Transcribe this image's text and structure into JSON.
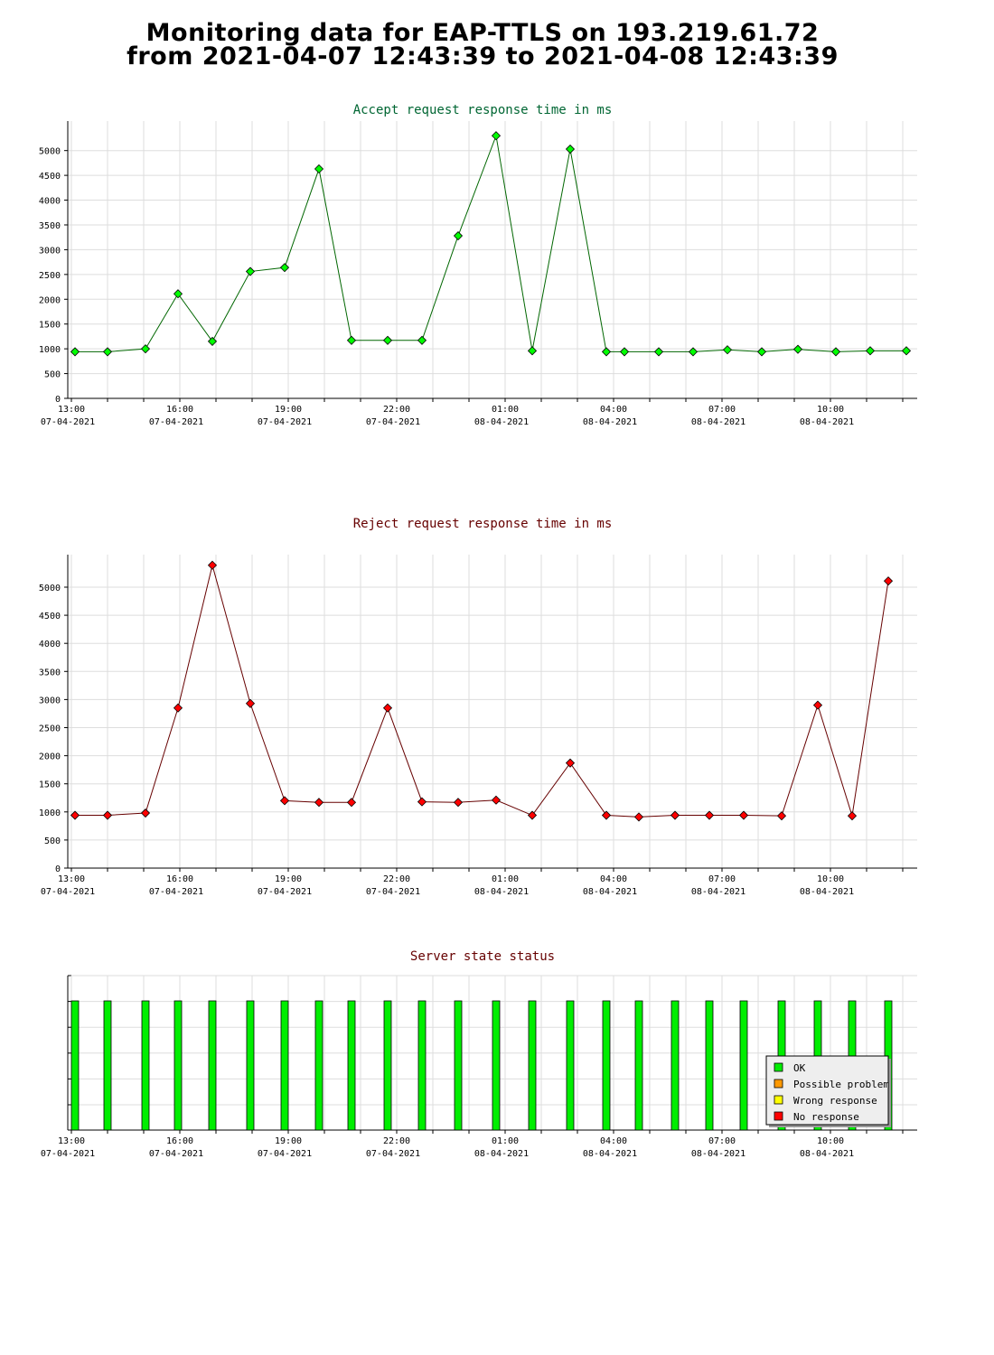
{
  "header": {
    "line1": "Monitoring data for EAP-TTLS on 193.219.61.72",
    "line2": "from 2021-04-07 12:43:39 to 2021-04-08 12:43:39"
  },
  "x_axis_ticks": [
    {
      "time": "13:00",
      "date": "07-04-2021",
      "h": 0
    },
    {
      "time": "16:00",
      "date": "07-04-2021",
      "h": 3
    },
    {
      "time": "19:00",
      "date": "07-04-2021",
      "h": 6
    },
    {
      "time": "22:00",
      "date": "07-04-2021",
      "h": 9
    },
    {
      "time": "01:00",
      "date": "08-04-2021",
      "h": 12
    },
    {
      "time": "04:00",
      "date": "08-04-2021",
      "h": 15
    },
    {
      "time": "07:00",
      "date": "08-04-2021",
      "h": 18
    },
    {
      "time": "10:00",
      "date": "08-04-2021",
      "h": 21
    }
  ],
  "colors": {
    "accept_line": "#006600",
    "accept_marker": "#00ff00",
    "reject_line": "#660000",
    "reject_marker": "#ff0000",
    "accept_title": "#006633",
    "reject_title": "#660000",
    "status_title": "#660000",
    "ok": "#00ee00",
    "possible_problem": "#ff9900",
    "wrong_response": "#ffff00",
    "no_response": "#ff0000"
  },
  "chart_data": [
    {
      "id": "accept",
      "type": "line",
      "title": "Accept request response time in ms",
      "ylim": [
        0,
        5450
      ],
      "yticks": [
        0,
        500,
        1000,
        1500,
        2000,
        2500,
        3000,
        3500,
        4000,
        4500,
        5000
      ],
      "x_hours_since_13": [
        0.1,
        1.0,
        2.05,
        2.95,
        3.9,
        4.95,
        5.9,
        6.85,
        7.75,
        8.75,
        9.7,
        10.7,
        11.75,
        12.75,
        13.8,
        14.8,
        15.3,
        16.25,
        17.2,
        18.15,
        19.1,
        20.1,
        21.15,
        22.1,
        23.1
      ],
      "values": [
        940,
        940,
        1000,
        2110,
        1150,
        2560,
        2640,
        4630,
        1170,
        1170,
        1170,
        3280,
        5300,
        960,
        5030,
        940,
        940,
        940,
        940,
        980,
        940,
        990,
        940,
        960,
        960
      ],
      "grid": true
    },
    {
      "id": "reject",
      "type": "line",
      "title": "Reject request response time in ms",
      "ylim": [
        0,
        5450
      ],
      "yticks": [
        0,
        500,
        1000,
        1500,
        2000,
        2500,
        3000,
        3500,
        4000,
        4500,
        5000
      ],
      "x_hours_since_13": [
        0.1,
        1.0,
        2.05,
        2.95,
        3.9,
        4.95,
        5.9,
        6.85,
        7.75,
        8.75,
        9.7,
        10.7,
        11.75,
        12.75,
        13.8,
        14.8,
        15.7,
        16.7,
        17.65,
        18.6,
        19.65,
        20.65,
        21.6,
        22.6
      ],
      "values": [
        940,
        940,
        980,
        2850,
        5390,
        2930,
        1200,
        1170,
        1170,
        2850,
        1180,
        1170,
        1210,
        940,
        1870,
        940,
        910,
        940,
        940,
        940,
        930,
        2900,
        930,
        5110
      ],
      "grid": true
    },
    {
      "id": "status",
      "type": "bar",
      "title": "Server state status",
      "x_hours_since_13": [
        0.1,
        1.0,
        2.05,
        2.95,
        3.9,
        4.95,
        5.9,
        6.85,
        7.75,
        8.75,
        9.7,
        10.7,
        11.75,
        12.75,
        13.8,
        14.8,
        15.7,
        16.7,
        17.65,
        18.6,
        19.65,
        20.65,
        21.6,
        22.6
      ],
      "values": [
        1,
        1,
        1,
        1,
        1,
        1,
        1,
        1,
        1,
        1,
        1,
        1,
        1,
        1,
        1,
        1,
        1,
        1,
        1,
        1,
        1,
        1,
        1,
        1
      ],
      "state": "OK",
      "legend": [
        "OK",
        "Possible problem",
        "Wrong response",
        "No response"
      ],
      "legend_placement": "bottom-right"
    }
  ]
}
